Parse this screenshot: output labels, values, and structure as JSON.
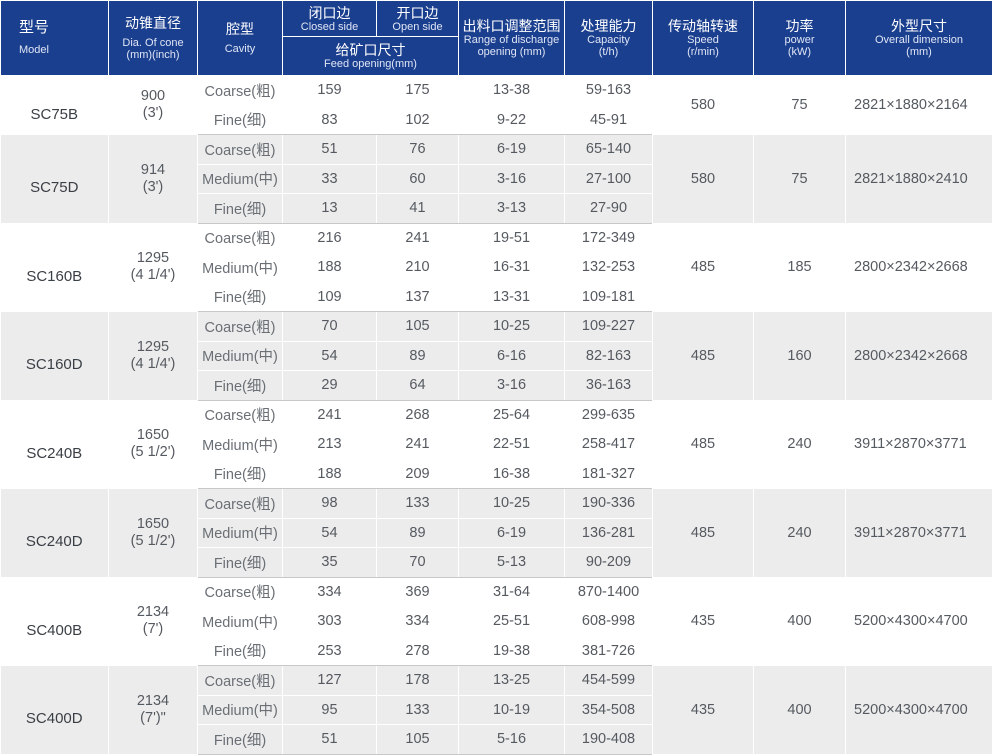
{
  "header": {
    "model_zh": "型号",
    "model_en": "Model",
    "dia_zh": "动锥直径",
    "dia_en_1": "Dia. Of cone",
    "dia_en_2": "(mm)(inch)",
    "cavity_zh": "腔型",
    "cavity_en": "Cavity",
    "closed_zh": "闭口边",
    "closed_en": "Closed side",
    "open_zh": "开口边",
    "open_en": "Open side",
    "feed_zh": "给矿口尺寸",
    "feed_en": "Feed opening(mm)",
    "range_zh": "出料口调整范围",
    "range_en_1": "Range of discharge",
    "range_en_2": "opening (mm)",
    "cap_zh": "处理能力",
    "cap_en_1": "Capacity",
    "cap_en_2": "(t/h)",
    "speed_zh": "传动轴转速",
    "speed_en_1": "Speed",
    "speed_en_2": "(r/min)",
    "power_zh": "功率",
    "power_en_1": "power",
    "power_en_2": "(kW)",
    "dim_zh": "外型尺寸",
    "dim_en_1": "Overall dimension",
    "dim_en_2": "(mm)"
  },
  "rows": [
    {
      "model": "SC75B",
      "dia": "900",
      "inch": "(3')",
      "speed": "580",
      "power": "75",
      "dimension": "2821×1880×2164",
      "cavities": [
        {
          "cavity": "Coarse(粗)",
          "closed": "159",
          "open": "175",
          "range": "13-38",
          "capacity": "59-163"
        },
        {
          "cavity": "Fine(细)",
          "closed": "83",
          "open": "102",
          "range": "9-22",
          "capacity": "45-91"
        }
      ]
    },
    {
      "model": "SC75D",
      "dia": "914",
      "inch": "(3')",
      "speed": "580",
      "power": "75",
      "dimension": "2821×1880×2410",
      "cavities": [
        {
          "cavity": "Coarse(粗)",
          "closed": "51",
          "open": "76",
          "range": "6-19",
          "capacity": "65-140"
        },
        {
          "cavity": "Medium(中)",
          "closed": "33",
          "open": "60",
          "range": "3-16",
          "capacity": "27-100"
        },
        {
          "cavity": "Fine(细)",
          "closed": "13",
          "open": "41",
          "range": "3-13",
          "capacity": "27-90"
        }
      ]
    },
    {
      "model": "SC160B",
      "dia": "1295",
      "inch": "(4 1/4')",
      "speed": "485",
      "power": "185",
      "dimension": "2800×2342×2668",
      "cavities": [
        {
          "cavity": "Coarse(粗)",
          "closed": "216",
          "open": "241",
          "range": "19-51",
          "capacity": "172-349"
        },
        {
          "cavity": "Medium(中)",
          "closed": "188",
          "open": "210",
          "range": "16-31",
          "capacity": "132-253"
        },
        {
          "cavity": "Fine(细)",
          "closed": "109",
          "open": "137",
          "range": "13-31",
          "capacity": "109-181"
        }
      ]
    },
    {
      "model": "SC160D",
      "dia": "1295",
      "inch": "(4 1/4')",
      "speed": "485",
      "power": "160",
      "dimension": "2800×2342×2668",
      "cavities": [
        {
          "cavity": "Coarse(粗)",
          "closed": "70",
          "open": "105",
          "range": "10-25",
          "capacity": "109-227"
        },
        {
          "cavity": "Medium(中)",
          "closed": "54",
          "open": "89",
          "range": "6-16",
          "capacity": "82-163"
        },
        {
          "cavity": "Fine(细)",
          "closed": "29",
          "open": "64",
          "range": "3-16",
          "capacity": "36-163"
        }
      ]
    },
    {
      "model": "SC240B",
      "dia": "1650",
      "inch": "(5 1/2')",
      "speed": "485",
      "power": "240",
      "dimension": "3911×2870×3771",
      "cavities": [
        {
          "cavity": "Coarse(粗)",
          "closed": "241",
          "open": "268",
          "range": "25-64",
          "capacity": "299-635"
        },
        {
          "cavity": "Medium(中)",
          "closed": "213",
          "open": "241",
          "range": "22-51",
          "capacity": "258-417"
        },
        {
          "cavity": "Fine(细)",
          "closed": "188",
          "open": "209",
          "range": "16-38",
          "capacity": "181-327"
        }
      ]
    },
    {
      "model": "SC240D",
      "dia": "1650",
      "inch": "(5 1/2')",
      "speed": "485",
      "power": "240",
      "dimension": "3911×2870×3771",
      "cavities": [
        {
          "cavity": "Coarse(粗)",
          "closed": "98",
          "open": "133",
          "range": "10-25",
          "capacity": "190-336"
        },
        {
          "cavity": "Medium(中)",
          "closed": "54",
          "open": "89",
          "range": "6-19",
          "capacity": "136-281"
        },
        {
          "cavity": "Fine(细)",
          "closed": "35",
          "open": "70",
          "range": "5-13",
          "capacity": "90-209"
        }
      ]
    },
    {
      "model": "SC400B",
      "dia": "2134",
      "inch": "(7')",
      "speed": "435",
      "power": "400",
      "dimension": "5200×4300×4700",
      "cavities": [
        {
          "cavity": "Coarse(粗)",
          "closed": "334",
          "open": "369",
          "range": "31-64",
          "capacity": "870-1400"
        },
        {
          "cavity": "Medium(中)",
          "closed": "303",
          "open": "334",
          "range": "25-51",
          "capacity": "608-998"
        },
        {
          "cavity": "Fine(细)",
          "closed": "253",
          "open": "278",
          "range": "19-38",
          "capacity": "381-726"
        }
      ]
    },
    {
      "model": "SC400D",
      "dia": "2134",
      "inch": "(7')\"",
      "speed": "435",
      "power": "400",
      "dimension": "5200×4300×4700",
      "cavities": [
        {
          "cavity": "Coarse(粗)",
          "closed": "127",
          "open": "178",
          "range": "13-25",
          "capacity": "454-599"
        },
        {
          "cavity": "Medium(中)",
          "closed": "95",
          "open": "133",
          "range": "10-19",
          "capacity": "354-508"
        },
        {
          "cavity": "Fine(细)",
          "closed": "51",
          "open": "105",
          "range": "5-16",
          "capacity": "190-408"
        }
      ]
    }
  ]
}
